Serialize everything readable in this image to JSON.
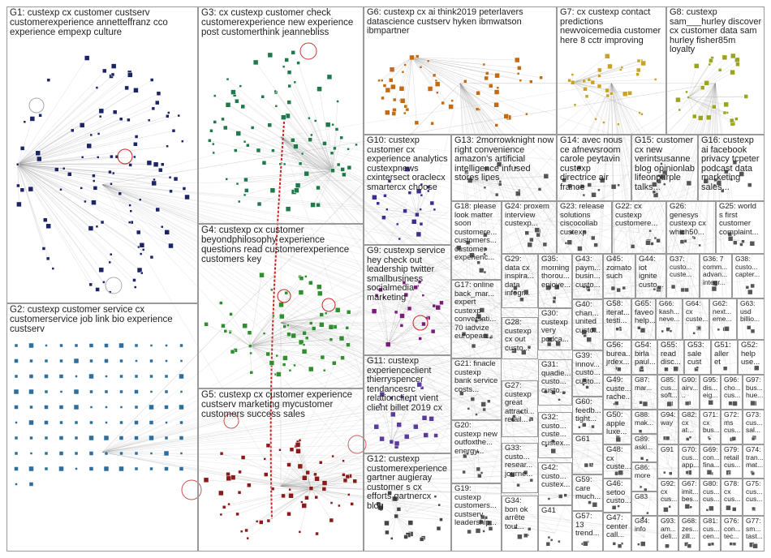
{
  "groups": [
    {
      "id": "G1",
      "label": "G1: custexp cx customer custserv customerexperience annetteffranz cco experience empexp culture",
      "color": "#1b2466"
    },
    {
      "id": "G2",
      "label": "G2: custexp customer service cx customerservice job link bio experience custserv",
      "color": "#2a6f9e"
    },
    {
      "id": "G3",
      "label": "G3: cx custexp customer check customerexperience new experience post customerthink jeannebliss",
      "color": "#1f7a4a"
    },
    {
      "id": "G4",
      "label": "G4: custexp cx customer beyondphilosophy experience questions read customerexperience customers key",
      "color": "#2f8f2f"
    },
    {
      "id": "G5",
      "label": "G5: custexp cx customer experience custserv marketing mycustomer customers success sales",
      "color": "#8b1a1a"
    },
    {
      "id": "G6",
      "label": "G6: custexp cx ai think2019 peterlavers datascience custserv hyken ibmwatson ibmpartner",
      "color": "#c46a12"
    },
    {
      "id": "G7",
      "label": "G7: cx custexp contact predictions newvoicemedia customer here 8 cctr improving",
      "color": "#c9a227"
    },
    {
      "id": "G8",
      "label": "G8: custexp sam___hurley discover cx customer data sam hurley fisher85m loyalty",
      "color": "#9aa51c"
    },
    {
      "id": "G9",
      "label": "G9: custexp service hey check out leadership twitter smallbusiness socialmedia marketing",
      "color": "#7a1a7a"
    },
    {
      "id": "G10",
      "label": "G10: custexp customer cx experience analytics custexpnews cxintersect oraclecx smartercx choose",
      "color": "#3a2f8f"
    },
    {
      "id": "G11",
      "label": "G11: custexp experienceclient thierryspencer tendancesrc relationclient vient client billet 2019 cx",
      "color": "#5a3a9a"
    },
    {
      "id": "G12",
      "label": "G12: custexp customerexperience gartner augieray customer s cx efforts gartnercx blog",
      "color": "#444444"
    },
    {
      "id": "G13",
      "label": "G13: 2morrowknight now right convenience amazon's artificial intelligence infused stores lines",
      "color": "#555555"
    },
    {
      "id": "G14",
      "label": "G14: avec nous ce afnewsroom carole peytavin custexp directrice air france",
      "color": "#555555"
    },
    {
      "id": "G15",
      "label": "G15: customer cx new verintsusanne blog opinionlab lifeonpurple talks...",
      "color": "#555555"
    },
    {
      "id": "G16",
      "label": "G16: custexp ai facebook privacy tcpeter podcast data marketing sales...",
      "color": "#555555"
    },
    {
      "id": "G17",
      "label": "G17: online back_mar... expert custexp conversati... 70 iadvize european...",
      "color": "#555555"
    },
    {
      "id": "G18",
      "label": "G18: please look matter soon customere... customers... customer experienc...",
      "color": "#555555"
    },
    {
      "id": "G19",
      "label": "G19: custexp customers... custserv leadership...",
      "color": "#555555"
    },
    {
      "id": "G20",
      "label": "G20: custexp new outfoxthe... energy...",
      "color": "#555555"
    },
    {
      "id": "G21",
      "label": "G21: finacle custexp bank service costs...",
      "color": "#555555"
    },
    {
      "id": "G22",
      "label": "G22: cx custexp customere...",
      "color": "#555555"
    },
    {
      "id": "G23",
      "label": "G23: release solutions ciscocollab custexp",
      "color": "#555555"
    },
    {
      "id": "G24",
      "label": "G24: proxem interview custexp...",
      "color": "#555555"
    },
    {
      "id": "G25",
      "label": "G25: world s first customer complaint...",
      "color": "#555555"
    },
    {
      "id": "G26",
      "label": "G26: genesys custexp cx which50...",
      "color": "#555555"
    },
    {
      "id": "G27",
      "label": "G27: custexp great attracti... retail...",
      "color": "#555555"
    },
    {
      "id": "G28",
      "label": "G28: custexp cx out custo...",
      "color": "#555555"
    },
    {
      "id": "G29",
      "label": "G29: data cx inspira... data infogr...",
      "color": "#555555"
    },
    {
      "id": "G30",
      "label": "G30: custexp very podca...",
      "color": "#555555"
    },
    {
      "id": "G31",
      "label": "G31: quadie... custo... custo...",
      "color": "#555555"
    },
    {
      "id": "G32",
      "label": "G32: custo... custe... custex...",
      "color": "#555555"
    },
    {
      "id": "G33",
      "label": "G33: custo... resear... journe...",
      "color": "#555555"
    },
    {
      "id": "G34",
      "label": "G34: bon ok arrête tout...",
      "color": "#555555"
    },
    {
      "id": "G35",
      "label": "G35: morning thorou... enjoye...",
      "color": "#555555"
    },
    {
      "id": "G36",
      "label": "G36: 7 comm... advan... integr...",
      "color": "#555555"
    },
    {
      "id": "G37",
      "label": "G37: custo... custe...",
      "color": "#555555"
    },
    {
      "id": "G38",
      "label": "G38: custo... capter...",
      "color": "#555555"
    },
    {
      "id": "G39",
      "label": "G39: innov... custo... custo...",
      "color": "#555555"
    },
    {
      "id": "G40",
      "label": "G40: chan... united custo...",
      "color": "#555555"
    },
    {
      "id": "G41",
      "label": "G41",
      "color": "#555555"
    },
    {
      "id": "G42",
      "label": "G42: custo... custex...",
      "color": "#555555"
    },
    {
      "id": "G43",
      "label": "G43: paym... busin... custo...",
      "color": "#555555"
    },
    {
      "id": "G44",
      "label": "G44: iot ignite custo...",
      "color": "#555555"
    },
    {
      "id": "G45",
      "label": "G45: zomato such",
      "color": "#555555"
    },
    {
      "id": "G46",
      "label": "G46: setoo custo...",
      "color": "#555555"
    },
    {
      "id": "G47",
      "label": "G47: center call...",
      "color": "#555555"
    },
    {
      "id": "G48",
      "label": "G48: cx custe...",
      "color": "#555555"
    },
    {
      "id": "G49",
      "label": "G49: custe... rache...",
      "color": "#555555"
    },
    {
      "id": "G50",
      "label": "G50: apple luxe...",
      "color": "#555555"
    },
    {
      "id": "G51",
      "label": "G51: aller et",
      "color": "#555555"
    },
    {
      "id": "G52",
      "label": "G52: help use...",
      "color": "#555555"
    },
    {
      "id": "G53",
      "label": "G53: sale cust",
      "color": "#555555"
    },
    {
      "id": "G54",
      "label": "G54: birla paul...",
      "color": "#555555"
    },
    {
      "id": "G55",
      "label": "G55: read disc...",
      "color": "#555555"
    },
    {
      "id": "G56",
      "label": "G56: burea... jrdex...",
      "color": "#555555"
    },
    {
      "id": "G57",
      "label": "G57: 13 trend...",
      "color": "#555555"
    },
    {
      "id": "G58",
      "label": "G58: iterat... testi...",
      "color": "#555555"
    },
    {
      "id": "G59",
      "label": "G59: care much...",
      "color": "#555555"
    },
    {
      "id": "G60",
      "label": "G60: feedb... tight...",
      "color": "#555555"
    },
    {
      "id": "G61",
      "label": "G61",
      "color": "#555555"
    },
    {
      "id": "G62",
      "label": "G62: next... eme...",
      "color": "#555555"
    },
    {
      "id": "G63",
      "label": "G63: usd billio...",
      "color": "#555555"
    },
    {
      "id": "G64",
      "label": "G64: cx custe...",
      "color": "#555555"
    },
    {
      "id": "G65",
      "label": "G65: faveo help...",
      "color": "#555555"
    },
    {
      "id": "G66",
      "label": "G66: kash... neve...",
      "color": "#555555"
    },
    {
      "id": "G67",
      "label": "G67: imit... bes...",
      "color": "#555555"
    },
    {
      "id": "G68",
      "label": "G68: zes... zill...",
      "color": "#555555"
    },
    {
      "id": "G69",
      "label": "G69: con... fina...",
      "color": "#555555"
    },
    {
      "id": "G70",
      "label": "G70: cus... app...",
      "color": "#555555"
    },
    {
      "id": "G71",
      "label": "G71: cx bus...",
      "color": "#555555"
    },
    {
      "id": "G72",
      "label": "G72: ms cus...",
      "color": "#555555"
    },
    {
      "id": "G73",
      "label": "G73: cus... sal...",
      "color": "#555555"
    },
    {
      "id": "G74",
      "label": "G74: tran... mat...",
      "color": "#555555"
    },
    {
      "id": "G75",
      "label": "G75: cus... cus...",
      "color": "#555555"
    },
    {
      "id": "G76",
      "label": "G76: con... tec...",
      "color": "#555555"
    },
    {
      "id": "G77",
      "label": "G77: sm... tast...",
      "color": "#555555"
    },
    {
      "id": "G78",
      "label": "G78: cx cus...",
      "color": "#555555"
    },
    {
      "id": "G79",
      "label": "G79: retail cus...",
      "color": "#555555"
    },
    {
      "id": "G80",
      "label": "G80: cus... cus...",
      "color": "#555555"
    },
    {
      "id": "G81",
      "label": "G81: cus... cen...",
      "color": "#555555"
    },
    {
      "id": "G82",
      "label": "G82: cx at...",
      "color": "#555555"
    },
    {
      "id": "G83",
      "label": "G83",
      "color": "#555555"
    },
    {
      "id": "G84",
      "label": "G84: info",
      "color": "#555555"
    },
    {
      "id": "G85",
      "label": "G85: cus... soft...",
      "color": "#555555"
    },
    {
      "id": "G86",
      "label": "G86: more",
      "color": "#555555"
    },
    {
      "id": "G87",
      "label": "G87: mar...",
      "color": "#555555"
    },
    {
      "id": "G88",
      "label": "G88: mak...",
      "color": "#555555"
    },
    {
      "id": "G89",
      "label": "G89: aski...",
      "color": "#555555"
    },
    {
      "id": "G90",
      "label": "G90: airv... ..",
      "color": "#555555"
    },
    {
      "id": "G91",
      "label": "G91",
      "color": "#555555"
    },
    {
      "id": "G92",
      "label": "G92: cx cus...",
      "color": "#555555"
    },
    {
      "id": "G93",
      "label": "G93: am... deli...",
      "color": "#555555"
    },
    {
      "id": "G94",
      "label": "G94: way",
      "color": "#555555"
    },
    {
      "id": "G95",
      "label": "G95: dis... eig...",
      "color": "#555555"
    },
    {
      "id": "G96",
      "label": "G96: cho... cus...",
      "color": "#555555"
    },
    {
      "id": "G97",
      "label": "G97: bus... hue...",
      "color": "#555555"
    }
  ]
}
